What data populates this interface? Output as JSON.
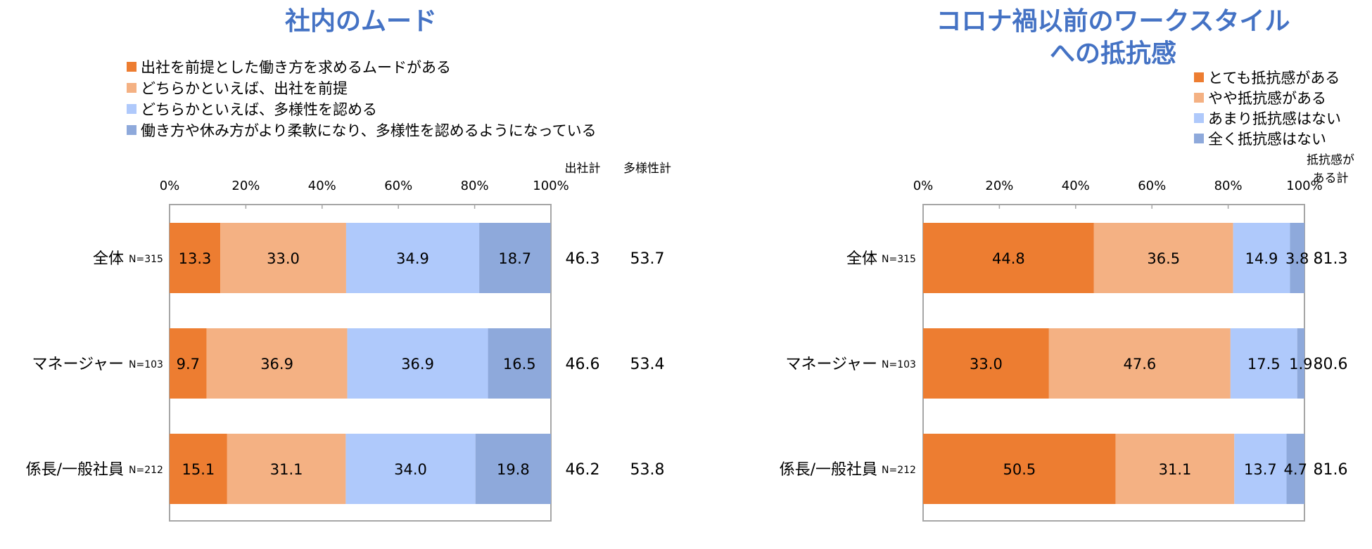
{
  "chart_data": [
    {
      "type": "bar",
      "orientation": "horizontal",
      "stacked": true,
      "title": "社内のムード",
      "xlim": [
        0,
        100
      ],
      "xticks": [
        "0%",
        "20%",
        "40%",
        "60%",
        "80%",
        "100%"
      ],
      "categories": [
        {
          "label": "全体",
          "n": "N=315"
        },
        {
          "label": "マネージャー",
          "n": "N=103"
        },
        {
          "label": "係長/一般社員",
          "n": "N=212"
        }
      ],
      "series": [
        {
          "name": "出社を前提とした働き方を求めるムードがある",
          "color": "#ED7D31",
          "values": [
            13.3,
            9.7,
            15.1
          ]
        },
        {
          "name": "どちらかといえば、出社を前提",
          "color": "#F4B183",
          "values": [
            33.0,
            36.9,
            31.1
          ]
        },
        {
          "name": "どちらかといえば、多様性を認める",
          "color": "#AFC9FB",
          "values": [
            34.9,
            36.9,
            34.0
          ]
        },
        {
          "name": "働き方や休み方がより柔軟になり、多様性を認めるようになっている",
          "color": "#8EA9DB",
          "values": [
            18.7,
            16.5,
            19.8
          ]
        }
      ],
      "totals": [
        {
          "label": [
            "出社計"
          ],
          "values": [
            46.3,
            46.6,
            46.2
          ]
        },
        {
          "label": [
            "多様性計"
          ],
          "values": [
            53.7,
            53.4,
            53.8
          ]
        }
      ],
      "legend_position": "top"
    },
    {
      "type": "bar",
      "orientation": "horizontal",
      "stacked": true,
      "title": [
        "コロナ禍以前のワークスタイル",
        "への抵抗感"
      ],
      "xlim": [
        0,
        100
      ],
      "xticks": [
        "0%",
        "20%",
        "40%",
        "60%",
        "80%",
        "100%"
      ],
      "categories": [
        {
          "label": "全体",
          "n": "N=315"
        },
        {
          "label": "マネージャー",
          "n": "N=103"
        },
        {
          "label": "係長/一般社員",
          "n": "N=212"
        }
      ],
      "series": [
        {
          "name": "とても抵抗感がある",
          "color": "#ED7D31",
          "values": [
            44.8,
            33.0,
            50.5
          ]
        },
        {
          "name": "やや抵抗感がある",
          "color": "#F4B183",
          "values": [
            36.5,
            47.6,
            31.1
          ]
        },
        {
          "name": "あまり抵抗感はない",
          "color": "#AFC9FB",
          "values": [
            14.9,
            17.5,
            13.7
          ]
        },
        {
          "name": "全く抵抗感はない",
          "color": "#8EA9DB",
          "values": [
            3.8,
            1.9,
            4.7
          ]
        }
      ],
      "totals": [
        {
          "label": [
            "抵抗感が",
            "ある計"
          ],
          "values": [
            81.3,
            80.6,
            81.6
          ]
        }
      ],
      "legend_position": "top-right"
    }
  ],
  "colors": {
    "title": "#4472C4",
    "axis": "#A6A6A6",
    "text": "#000000"
  }
}
